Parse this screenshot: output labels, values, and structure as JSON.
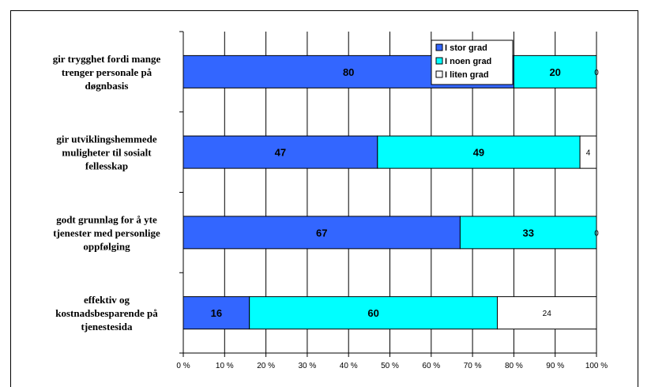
{
  "chart_data": {
    "type": "bar",
    "orientation": "horizontal",
    "stacked": "percent",
    "categories": [
      [
        "gir trygghet fordi mange",
        "trenger personale på",
        "døgnbasis"
      ],
      [
        "gir utviklingshemmede",
        "muligheter til sosialt",
        "fellesskap"
      ],
      [
        "godt grunnlag for å yte",
        "tjenester med personlige",
        "oppfølging"
      ],
      [
        "effektiv og",
        "kostnadsbesparende på",
        "tjenestesida"
      ]
    ],
    "series": [
      {
        "name": "I stor grad",
        "values": [
          80,
          47,
          67,
          16
        ],
        "color": "#3366ff"
      },
      {
        "name": "I noen grad",
        "values": [
          20,
          49,
          33,
          60
        ],
        "color": "#00ffff"
      },
      {
        "name": "I liten grad",
        "values": [
          0,
          4,
          0,
          24
        ],
        "color": "#ffffff"
      }
    ],
    "xlim": [
      0,
      100
    ],
    "xticks": [
      "0 %",
      "10 %",
      "20 %",
      "30 %",
      "40 %",
      "50 %",
      "60 %",
      "70 %",
      "80 %",
      "90 %",
      "100 %"
    ],
    "grid": true,
    "legend_position": "top-right"
  }
}
